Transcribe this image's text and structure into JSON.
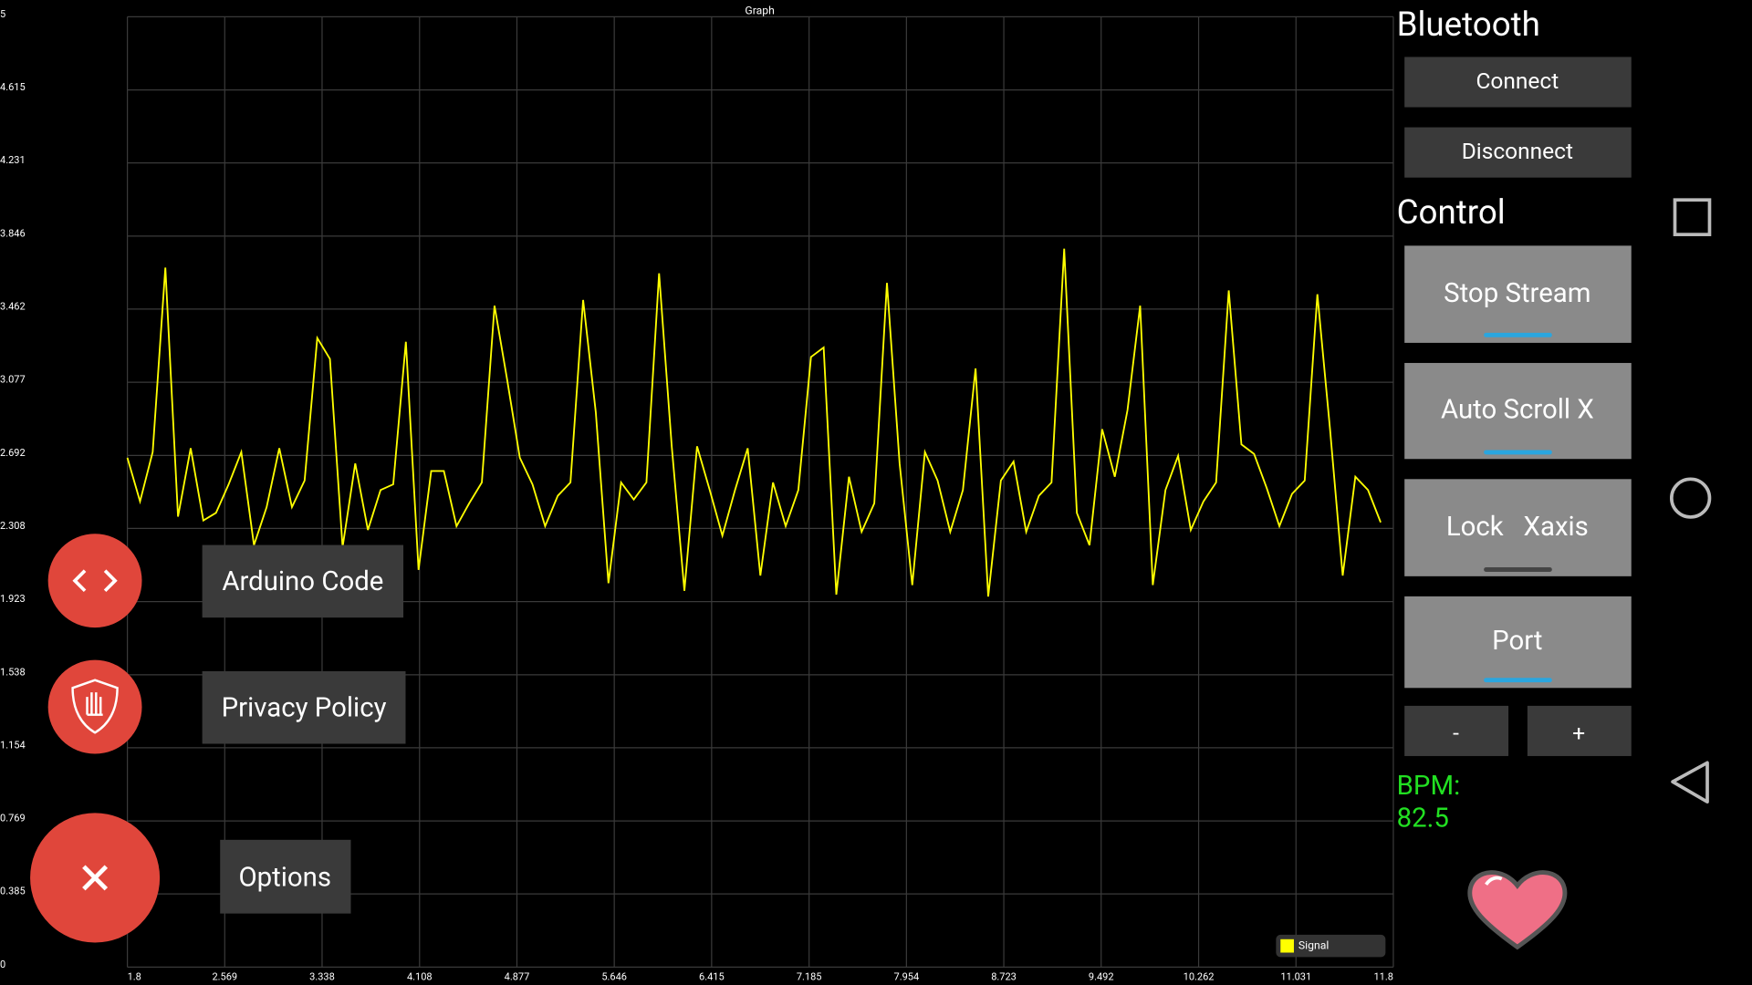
{
  "chart_data": {
    "type": "line",
    "title": "Graph",
    "x": [
      1.8,
      1.9,
      2.0,
      2.1,
      2.2,
      2.3,
      2.4,
      2.5,
      2.6,
      2.7,
      2.8,
      2.9,
      3.0,
      3.1,
      3.2,
      3.3,
      3.4,
      3.5,
      3.6,
      3.7,
      3.8,
      3.9,
      4.0,
      4.1,
      4.2,
      4.3,
      4.4,
      4.5,
      4.6,
      4.7,
      4.8,
      4.9,
      5.0,
      5.1,
      5.2,
      5.3,
      5.4,
      5.5,
      5.6,
      5.7,
      5.8,
      5.9,
      6.0,
      6.1,
      6.2,
      6.3,
      6.4,
      6.5,
      6.6,
      6.7,
      6.8,
      6.9,
      7.0,
      7.1,
      7.2,
      7.3,
      7.4,
      7.5,
      7.6,
      7.7,
      7.8,
      7.9,
      8.0,
      8.1,
      8.2,
      8.3,
      8.4,
      8.5,
      8.6,
      8.7,
      8.8,
      8.9,
      9.0,
      9.1,
      9.2,
      9.3,
      9.4,
      9.5,
      9.6,
      9.7,
      9.8,
      9.9,
      10.0,
      10.1,
      10.2,
      10.3,
      10.4,
      10.5,
      10.6,
      10.7,
      10.8,
      10.9,
      11.0,
      11.1,
      11.2,
      11.3,
      11.4,
      11.5,
      11.6,
      11.7
    ],
    "series": [
      {
        "name": "Signal",
        "color": "#ffff00",
        "values": [
          2.68,
          2.45,
          2.71,
          3.68,
          2.37,
          2.73,
          2.35,
          2.39,
          2.54,
          2.71,
          2.22,
          2.42,
          2.73,
          2.42,
          2.56,
          3.31,
          3.2,
          2.21,
          2.65,
          2.3,
          2.51,
          2.54,
          3.29,
          2.09,
          2.61,
          2.61,
          2.32,
          2.44,
          2.55,
          3.48,
          3.09,
          2.68,
          2.54,
          2.32,
          2.48,
          2.55,
          3.51,
          2.92,
          2.02,
          2.55,
          2.46,
          2.55,
          3.65,
          2.74,
          1.98,
          2.74,
          2.51,
          2.27,
          2.51,
          2.73,
          2.06,
          2.55,
          2.32,
          2.51,
          3.21,
          3.26,
          1.96,
          2.58,
          2.29,
          2.44,
          3.6,
          2.65,
          2.01,
          2.71,
          2.56,
          2.29,
          2.51,
          3.15,
          1.95,
          2.56,
          2.66,
          2.29,
          2.48,
          2.55,
          3.78,
          2.39,
          2.22,
          2.83,
          2.58,
          2.93,
          3.48,
          2.01,
          2.51,
          2.69,
          2.3,
          2.45,
          2.55,
          3.56,
          2.75,
          2.7,
          2.52,
          2.32,
          2.49,
          2.56,
          3.54,
          2.83,
          2.06,
          2.58,
          2.51,
          2.34
        ]
      }
    ],
    "xlim": [
      1.8,
      11.8
    ],
    "ylim": [
      0,
      5
    ],
    "xticks": [
      1.8,
      2.569,
      3.338,
      4.108,
      4.877,
      5.646,
      6.415,
      7.185,
      7.954,
      8.723,
      9.492,
      10.262,
      11.031,
      11.8
    ],
    "yticks": [
      0,
      0.385,
      0.769,
      1.154,
      1.538,
      1.923,
      2.308,
      2.692,
      3.077,
      3.462,
      3.846,
      4.231,
      4.615,
      5
    ],
    "grid": true,
    "legend": "bottom-right"
  },
  "panel": {
    "bluetooth_title": "Bluetooth",
    "connect": "Connect",
    "disconnect": "Disconnect",
    "control_title": "Control",
    "stop_stream": "Stop Stream",
    "auto_scroll": "Auto Scroll X",
    "lock_xaxis": "Lock   Xaxis",
    "port": "Port",
    "minus": "-",
    "plus": "+",
    "bpm_label": "BPM:",
    "bpm_value": "82.5"
  },
  "menu": {
    "arduino_code": "Arduino Code",
    "privacy_policy": "Privacy Policy",
    "options": "Options"
  }
}
